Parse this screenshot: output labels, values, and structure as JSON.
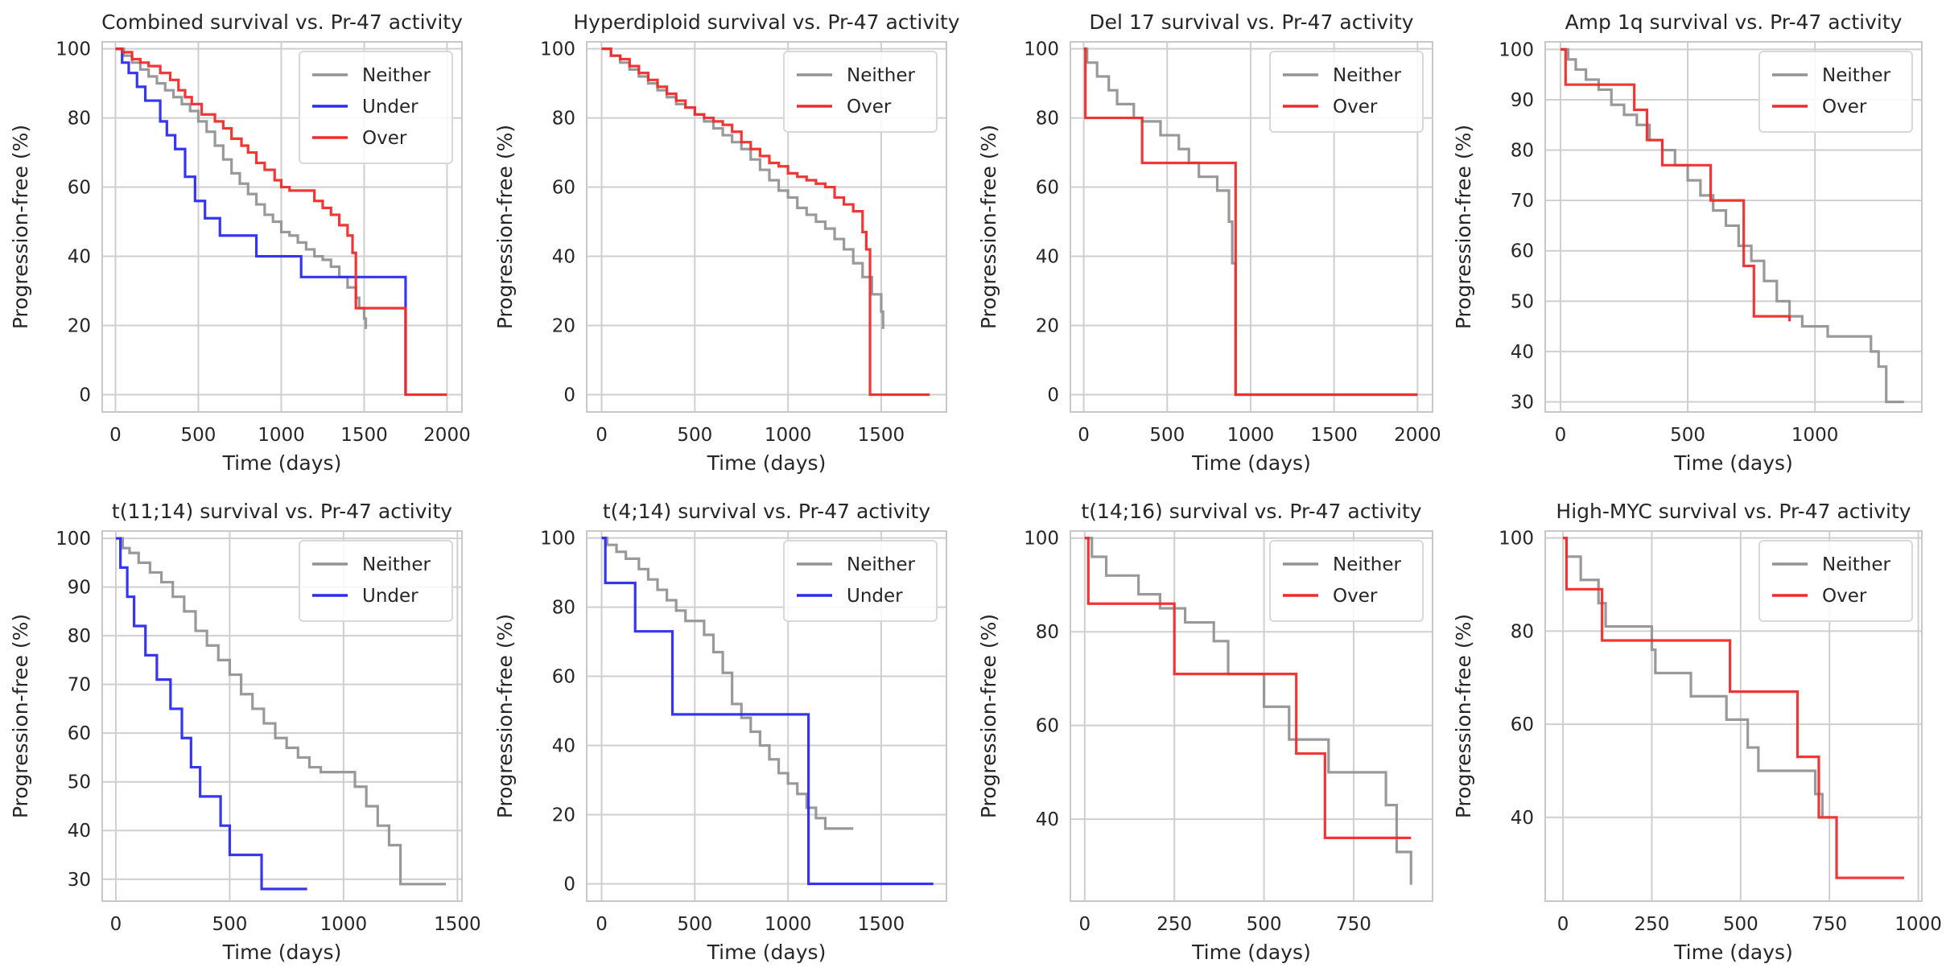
{
  "colors": {
    "Neither": "#939393",
    "Under": "#2b2bf0",
    "Over": "#f02b2b",
    "grid": "#cfcfcf",
    "frame": "#c8c8c8"
  },
  "chart_data": [
    {
      "type": "line",
      "title": "Combined survival vs. Pr-47 activity",
      "xlabel": "Time (days)",
      "ylabel": "Progression-free (%)",
      "xlim": [
        -80,
        2090
      ],
      "ylim": [
        -5,
        102
      ],
      "xticks": [
        0,
        500,
        1000,
        1500,
        2000
      ],
      "yticks": [
        0,
        20,
        40,
        60,
        80,
        100
      ],
      "legend": "top-right",
      "series": [
        {
          "name": "Neither",
          "x": [
            0,
            50,
            100,
            150,
            200,
            250,
            300,
            350,
            400,
            450,
            500,
            550,
            600,
            650,
            700,
            750,
            800,
            850,
            900,
            950,
            1000,
            1050,
            1100,
            1150,
            1200,
            1250,
            1300,
            1350,
            1400,
            1450,
            1470,
            1500,
            1510
          ],
          "y": [
            100,
            98,
            96,
            94,
            92,
            90,
            88,
            86,
            84,
            82,
            79,
            76,
            72,
            68,
            64,
            61,
            58,
            55,
            52,
            50,
            47,
            46,
            44,
            42,
            40,
            39,
            37,
            34,
            31,
            28,
            25,
            22,
            19
          ]
        },
        {
          "name": "Under",
          "x": [
            0,
            40,
            80,
            130,
            180,
            270,
            310,
            360,
            420,
            480,
            540,
            630,
            850,
            1120,
            1750
          ],
          "y": [
            100,
            96,
            93,
            89,
            85,
            79,
            75,
            71,
            63,
            56,
            51,
            46,
            40,
            34,
            0
          ]
        },
        {
          "name": "Over",
          "x": [
            0,
            40,
            100,
            150,
            200,
            270,
            330,
            380,
            420,
            460,
            520,
            600,
            650,
            700,
            760,
            800,
            850,
            900,
            960,
            1000,
            1050,
            1100,
            1150,
            1200,
            1250,
            1300,
            1350,
            1400,
            1430,
            1450,
            1750,
            2000
          ],
          "y": [
            100,
            99,
            97,
            96,
            95,
            93,
            91,
            88,
            86,
            84,
            81,
            79,
            77,
            74,
            72,
            70,
            67,
            65,
            62,
            60,
            59,
            59,
            59,
            56,
            54,
            52,
            49,
            46,
            41,
            25,
            0,
            0
          ]
        }
      ]
    },
    {
      "type": "line",
      "title": "Hyperdiploid survival vs. Pr-47 activity",
      "xlabel": "Time (days)",
      "ylabel": "Progression-free (%)",
      "xlim": [
        -80,
        1850
      ],
      "ylim": [
        -5,
        102
      ],
      "xticks": [
        0,
        500,
        1000,
        1500
      ],
      "yticks": [
        0,
        20,
        40,
        60,
        80,
        100
      ],
      "legend": "top-right",
      "series": [
        {
          "name": "Neither",
          "x": [
            0,
            50,
            100,
            150,
            200,
            250,
            300,
            350,
            400,
            450,
            500,
            550,
            600,
            650,
            700,
            750,
            800,
            850,
            900,
            950,
            1000,
            1050,
            1100,
            1150,
            1200,
            1250,
            1300,
            1350,
            1400,
            1450,
            1500,
            1510
          ],
          "y": [
            100,
            98,
            96,
            94,
            92,
            90,
            88,
            86,
            84,
            83,
            81,
            79,
            77,
            75,
            73,
            71,
            68,
            65,
            62,
            59,
            57,
            54,
            52,
            50,
            48,
            45,
            42,
            38,
            34,
            29,
            24,
            19
          ]
        },
        {
          "name": "Over",
          "x": [
            0,
            50,
            100,
            150,
            200,
            250,
            300,
            350,
            400,
            450,
            500,
            550,
            600,
            650,
            700,
            750,
            800,
            850,
            900,
            950,
            1000,
            1050,
            1100,
            1150,
            1200,
            1250,
            1300,
            1350,
            1400,
            1420,
            1440,
            1760
          ],
          "y": [
            100,
            98,
            97,
            95,
            93,
            91,
            89,
            87,
            85,
            83,
            81,
            80,
            79,
            78,
            76,
            73,
            71,
            69,
            67,
            66,
            64,
            63,
            62,
            61,
            60,
            57,
            55,
            53,
            47,
            42,
            0,
            0
          ]
        }
      ]
    },
    {
      "type": "line",
      "title": "Del 17 survival vs. Pr-47 activity",
      "xlabel": "Time (days)",
      "ylabel": "Progression-free (%)",
      "xlim": [
        -80,
        2090
      ],
      "ylim": [
        -5,
        102
      ],
      "xticks": [
        0,
        500,
        1000,
        1500,
        2000
      ],
      "yticks": [
        0,
        20,
        40,
        60,
        80,
        100
      ],
      "legend": "top-right",
      "series": [
        {
          "name": "Neither",
          "x": [
            0,
            20,
            80,
            150,
            200,
            300,
            350,
            460,
            570,
            630,
            690,
            800,
            870,
            890,
            910,
            2000
          ],
          "y": [
            100,
            96,
            92,
            88,
            84,
            80,
            79,
            75,
            71,
            67,
            63,
            59,
            50,
            38,
            0,
            0
          ]
        },
        {
          "name": "Over",
          "x": [
            0,
            10,
            350,
            910,
            2000
          ],
          "y": [
            100,
            80,
            67,
            0,
            0
          ]
        }
      ]
    },
    {
      "type": "line",
      "title": "Amp 1q survival vs. Pr-47 activity",
      "xlabel": "Time (days)",
      "ylabel": "Progression-free (%)",
      "xlim": [
        -60,
        1420
      ],
      "ylim": [
        28,
        101.5
      ],
      "xticks": [
        0,
        500,
        1000
      ],
      "yticks": [
        30,
        40,
        50,
        60,
        70,
        80,
        90,
        100
      ],
      "legend": "top-right",
      "series": [
        {
          "name": "Neither",
          "x": [
            0,
            30,
            60,
            100,
            150,
            200,
            250,
            300,
            350,
            400,
            450,
            500,
            550,
            600,
            650,
            700,
            750,
            800,
            850,
            900,
            950,
            1050,
            1150,
            1220,
            1250,
            1280,
            1350
          ],
          "y": [
            100,
            98,
            96,
            94,
            92,
            89,
            87,
            85,
            82,
            80,
            77,
            74,
            71,
            68,
            65,
            61,
            58,
            54,
            50,
            47,
            45,
            43,
            43,
            40,
            37,
            30,
            30
          ]
        },
        {
          "name": "Over",
          "x": [
            0,
            20,
            290,
            340,
            400,
            590,
            720,
            760,
            900
          ],
          "y": [
            100,
            93,
            88,
            82,
            77,
            70,
            57,
            47,
            46
          ]
        }
      ]
    },
    {
      "type": "line",
      "title": "t(11;14) survival vs. Pr-47 activity",
      "xlabel": "Time (days)",
      "ylabel": "Progression-free (%)",
      "xlim": [
        -60,
        1520
      ],
      "ylim": [
        25.5,
        101.5
      ],
      "xticks": [
        0,
        500,
        1000,
        1500
      ],
      "yticks": [
        30,
        40,
        50,
        60,
        70,
        80,
        90,
        100
      ],
      "legend": "top-right",
      "series": [
        {
          "name": "Neither",
          "x": [
            0,
            30,
            60,
            100,
            150,
            200,
            250,
            300,
            350,
            400,
            450,
            500,
            550,
            600,
            650,
            700,
            750,
            800,
            850,
            900,
            950,
            1050,
            1100,
            1150,
            1200,
            1250,
            1450
          ],
          "y": [
            100,
            98,
            97,
            95,
            93,
            91,
            88,
            85,
            81,
            78,
            75,
            72,
            68,
            65,
            62,
            59,
            57,
            55,
            53,
            52,
            52,
            49,
            45,
            41,
            37,
            29,
            29
          ]
        },
        {
          "name": "Under",
          "x": [
            0,
            20,
            50,
            80,
            130,
            180,
            240,
            290,
            330,
            370,
            460,
            500,
            640,
            840
          ],
          "y": [
            100,
            94,
            88,
            82,
            76,
            71,
            65,
            59,
            53,
            47,
            41,
            35,
            28,
            28
          ]
        }
      ]
    },
    {
      "type": "line",
      "title": "t(4;14) survival vs. Pr-47 activity",
      "xlabel": "Time (days)",
      "ylabel": "Progression-free (%)",
      "xlim": [
        -80,
        1850
      ],
      "ylim": [
        -5,
        102
      ],
      "xticks": [
        0,
        500,
        1000,
        1500
      ],
      "yticks": [
        0,
        20,
        40,
        60,
        80,
        100
      ],
      "legend": "top-right",
      "series": [
        {
          "name": "Neither",
          "x": [
            0,
            30,
            80,
            130,
            200,
            250,
            300,
            350,
            400,
            450,
            500,
            550,
            600,
            650,
            700,
            750,
            800,
            850,
            900,
            950,
            1000,
            1050,
            1100,
            1150,
            1200,
            1350
          ],
          "y": [
            100,
            98,
            96,
            94,
            91,
            88,
            85,
            82,
            79,
            76,
            76,
            72,
            67,
            61,
            52,
            48,
            44,
            40,
            36,
            32,
            29,
            26,
            22,
            19,
            16,
            16
          ]
        },
        {
          "name": "Under",
          "x": [
            0,
            20,
            180,
            380,
            1110,
            1780
          ],
          "y": [
            100,
            87,
            73,
            49,
            0,
            0
          ]
        }
      ]
    },
    {
      "type": "line",
      "title": "t(14;16) survival vs. Pr-47 activity",
      "xlabel": "Time (days)",
      "ylabel": "Progression-free (%)",
      "xlim": [
        -40,
        970
      ],
      "ylim": [
        22.5,
        101.5
      ],
      "xticks": [
        0,
        250,
        500,
        750
      ],
      "yticks": [
        40,
        60,
        80,
        100
      ],
      "legend": "top-right",
      "series": [
        {
          "name": "Neither",
          "x": [
            0,
            20,
            60,
            150,
            210,
            280,
            360,
            400,
            500,
            570,
            680,
            840,
            870,
            910
          ],
          "y": [
            100,
            96,
            92,
            88,
            85,
            82,
            78,
            71,
            64,
            57,
            50,
            43,
            33,
            26
          ]
        },
        {
          "name": "Over",
          "x": [
            0,
            10,
            250,
            590,
            650,
            670,
            910
          ],
          "y": [
            100,
            86,
            71,
            54,
            54,
            36,
            36
          ]
        }
      ]
    },
    {
      "type": "line",
      "title": "High-MYC survival vs. Pr-47 activity",
      "xlabel": "Time (days)",
      "ylabel": "Progression-free (%)",
      "xlim": [
        -50,
        1010
      ],
      "ylim": [
        22,
        101.5
      ],
      "xticks": [
        0,
        250,
        500,
        750,
        1000
      ],
      "yticks": [
        40,
        60,
        80,
        100
      ],
      "legend": "top-right",
      "series": [
        {
          "name": "Neither",
          "x": [
            0,
            10,
            50,
            100,
            120,
            250,
            260,
            360,
            460,
            520,
            550,
            710,
            730
          ],
          "y": [
            100,
            96,
            91,
            86,
            81,
            76,
            71,
            66,
            61,
            55,
            50,
            45,
            40
          ]
        },
        {
          "name": "Over",
          "x": [
            0,
            10,
            110,
            470,
            660,
            720,
            770,
            960
          ],
          "y": [
            100,
            89,
            78,
            67,
            53,
            40,
            27,
            27
          ]
        }
      ]
    }
  ]
}
